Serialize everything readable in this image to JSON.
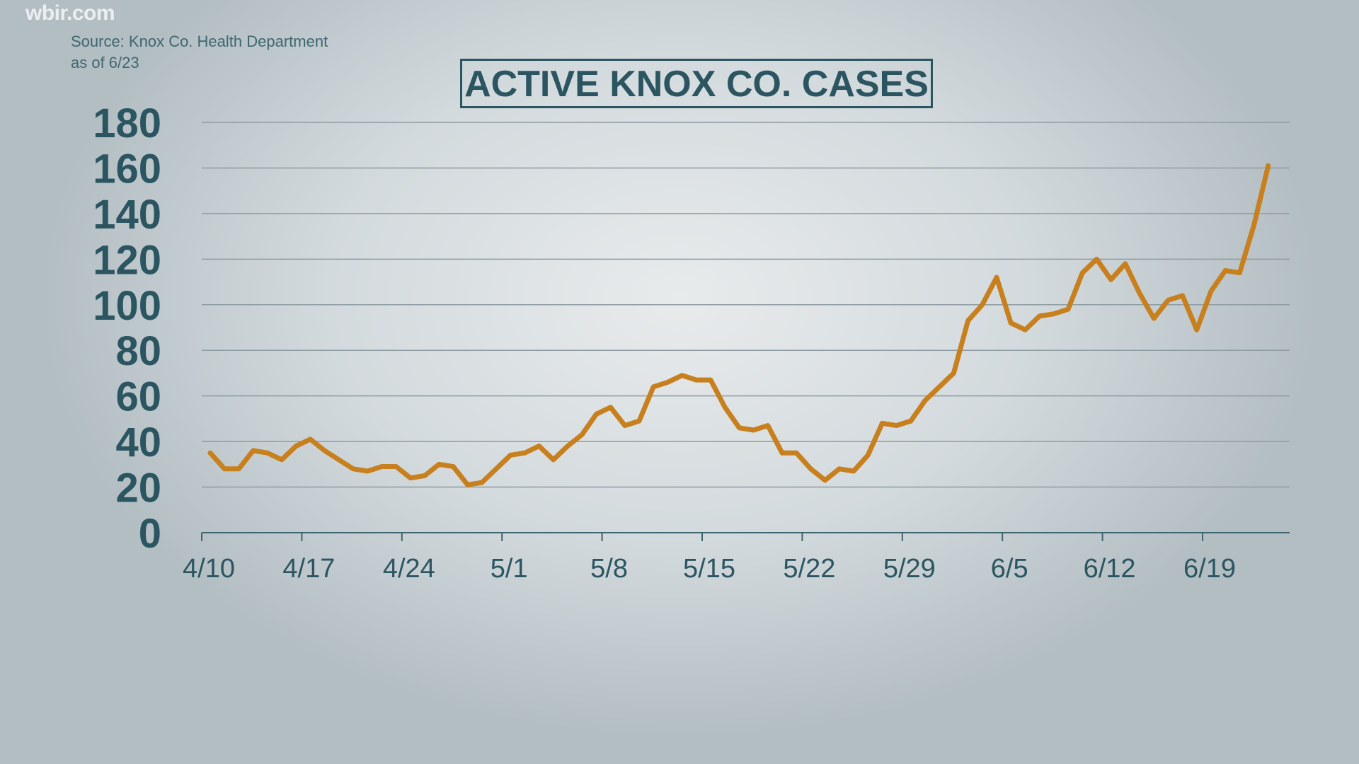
{
  "watermark": "wbir.com",
  "source": {
    "line1": "Source: Knox Co. Health Department",
    "line2": "as of 6/23"
  },
  "colors": {
    "line": "#c8801e",
    "text": "#2b5561",
    "grid": "#8e9ca2"
  },
  "chart_data": {
    "type": "line",
    "title": "ACTIVE KNOX CO. CASES",
    "xlabel": "",
    "ylabel": "",
    "ylim": [
      0,
      180
    ],
    "yticks": [
      0,
      20,
      40,
      60,
      80,
      100,
      120,
      140,
      160,
      180
    ],
    "xticks": [
      "4/10",
      "4/17",
      "4/24",
      "5/1",
      "5/8",
      "5/15",
      "5/22",
      "5/29",
      "6/5",
      "6/12",
      "6/19"
    ],
    "grid": true,
    "x_start": "4/10",
    "x_end": "6/23",
    "series": [
      {
        "values": [
          35,
          28,
          28,
          36,
          35,
          32,
          38,
          41,
          36,
          32,
          28,
          27,
          29,
          29,
          24,
          25,
          30,
          29,
          21,
          22,
          28,
          34,
          35,
          38,
          32,
          38,
          43,
          52,
          55,
          47,
          49,
          64,
          66,
          69,
          67,
          67,
          55,
          46,
          45,
          47,
          35,
          35,
          28,
          23,
          28,
          27,
          34,
          48,
          47,
          49,
          58,
          64,
          70,
          93,
          100,
          112,
          92,
          89,
          95,
          96,
          98,
          114,
          120,
          111,
          118,
          105,
          94,
          102,
          104,
          89,
          106,
          115,
          114,
          135,
          161
        ]
      }
    ]
  }
}
